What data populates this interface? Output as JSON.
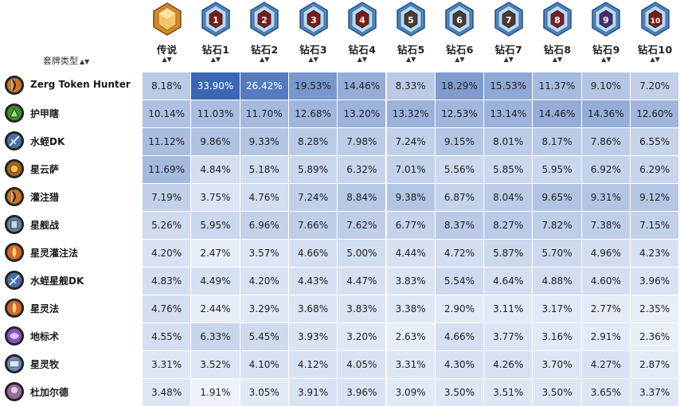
{
  "header": {
    "archetype_label": "套牌类型",
    "columns": [
      {
        "label": "传说",
        "rank": "legend"
      },
      {
        "label": "钻石1",
        "rank": "1"
      },
      {
        "label": "钻石2",
        "rank": "2"
      },
      {
        "label": "钻石3",
        "rank": "3"
      },
      {
        "label": "钻石4",
        "rank": "4"
      },
      {
        "label": "钻石5",
        "rank": "5"
      },
      {
        "label": "钻石6",
        "rank": "6"
      },
      {
        "label": "钻石7",
        "rank": "7"
      },
      {
        "label": "钻石8",
        "rank": "8"
      },
      {
        "label": "钻石9",
        "rank": "9"
      },
      {
        "label": "钻石10",
        "rank": "10"
      }
    ]
  },
  "rows": [
    {
      "name": "Zerg Token Hunter",
      "icon": "hunter-class-icon",
      "icon_color": "#c8742a",
      "values": [
        "8.18%",
        "33.90%",
        "26.42%",
        "19.53%",
        "14.46%",
        "8.33%",
        "18.29%",
        "15.53%",
        "11.37%",
        "9.10%",
        "7.20%"
      ]
    },
    {
      "name": "护甲瞎",
      "icon": "demon-hunter-class-icon",
      "icon_color": "#3e8f2f",
      "values": [
        "10.14%",
        "11.03%",
        "11.70%",
        "12.68%",
        "13.20%",
        "13.32%",
        "12.53%",
        "13.14%",
        "14.46%",
        "14.36%",
        "12.60%"
      ]
    },
    {
      "name": "水蛭DK",
      "icon": "death-knight-class-icon",
      "icon_color": "#4a6fa8",
      "values": [
        "11.12%",
        "9.86%",
        "9.33%",
        "8.28%",
        "7.98%",
        "7.24%",
        "9.15%",
        "8.01%",
        "8.17%",
        "7.86%",
        "6.55%"
      ]
    },
    {
      "name": "星云萨",
      "icon": "shaman-class-icon",
      "icon_color": "#a0691d",
      "values": [
        "11.69%",
        "4.84%",
        "5.18%",
        "5.89%",
        "6.32%",
        "7.01%",
        "5.56%",
        "5.85%",
        "5.95%",
        "6.92%",
        "6.29%"
      ]
    },
    {
      "name": "灌注猎",
      "icon": "hunter-class-icon",
      "icon_color": "#c8742a",
      "values": [
        "7.19%",
        "3.75%",
        "4.76%",
        "7.24%",
        "8.84%",
        "9.38%",
        "6.87%",
        "8.04%",
        "9.65%",
        "9.31%",
        "9.12%"
      ]
    },
    {
      "name": "星舰战",
      "icon": "warrior-class-icon",
      "icon_color": "#6b7fa0",
      "values": [
        "5.26%",
        "5.95%",
        "6.96%",
        "7.66%",
        "7.62%",
        "6.77%",
        "8.37%",
        "8.27%",
        "7.82%",
        "7.38%",
        "7.15%"
      ]
    },
    {
      "name": "星灵灌注法",
      "icon": "mage-class-icon",
      "icon_color": "#d2662a",
      "values": [
        "4.20%",
        "2.47%",
        "3.57%",
        "4.66%",
        "5.00%",
        "4.44%",
        "4.72%",
        "5.87%",
        "5.70%",
        "4.96%",
        "4.23%"
      ]
    },
    {
      "name": "水蛭星舰DK",
      "icon": "death-knight-class-icon",
      "icon_color": "#4a6fa8",
      "values": [
        "4.83%",
        "4.49%",
        "4.20%",
        "4.43%",
        "4.47%",
        "3.83%",
        "5.54%",
        "4.64%",
        "4.88%",
        "4.60%",
        "3.96%"
      ]
    },
    {
      "name": "星灵法",
      "icon": "mage-class-icon",
      "icon_color": "#d2662a",
      "values": [
        "4.76%",
        "2.44%",
        "3.29%",
        "3.68%",
        "3.83%",
        "3.38%",
        "2.90%",
        "3.11%",
        "3.17%",
        "2.77%",
        "2.35%"
      ]
    },
    {
      "name": "地标术",
      "icon": "warlock-class-icon",
      "icon_color": "#8b52c4",
      "values": [
        "4.55%",
        "6.33%",
        "5.45%",
        "3.93%",
        "3.20%",
        "2.63%",
        "4.66%",
        "3.77%",
        "3.16%",
        "2.91%",
        "2.36%"
      ]
    },
    {
      "name": "星灵牧",
      "icon": "priest-class-icon",
      "icon_color": "#6d8fb3",
      "values": [
        "3.31%",
        "3.52%",
        "4.10%",
        "4.12%",
        "4.05%",
        "3.31%",
        "4.30%",
        "4.26%",
        "3.70%",
        "4.27%",
        "2.87%"
      ]
    },
    {
      "name": "杜加尔德",
      "icon": "paladin-class-icon",
      "icon_color": "#9a6a9c",
      "values": [
        "3.48%",
        "1.91%",
        "3.05%",
        "3.91%",
        "3.96%",
        "3.09%",
        "3.50%",
        "3.51%",
        "3.50%",
        "3.65%",
        "3.37%"
      ]
    }
  ],
  "colors": {
    "cell_light": "#eef3fb",
    "cell_dark": "#3a66b4",
    "badge_blue": "#4d86c2",
    "badge_gem": "#7a1d1a",
    "legend_badge": "#d08a2b"
  }
}
